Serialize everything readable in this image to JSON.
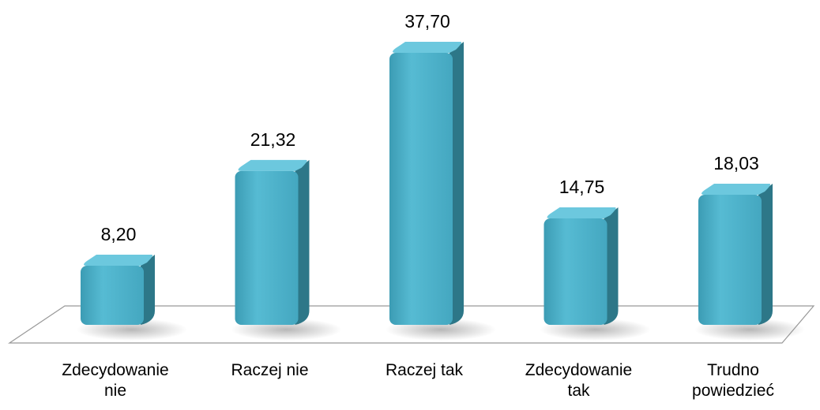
{
  "chart_data": {
    "type": "bar",
    "categories": [
      "Zdecydowanie nie",
      "Raczej nie",
      "Raczej tak",
      "Zdecydowanie tak",
      "Trudno powiedzieć"
    ],
    "values": [
      8.2,
      21.32,
      37.7,
      14.75,
      18.03
    ],
    "value_labels": [
      "8,20",
      "21,32",
      "37,70",
      "14,75",
      "18,03"
    ],
    "color": "#4aafc8"
  }
}
